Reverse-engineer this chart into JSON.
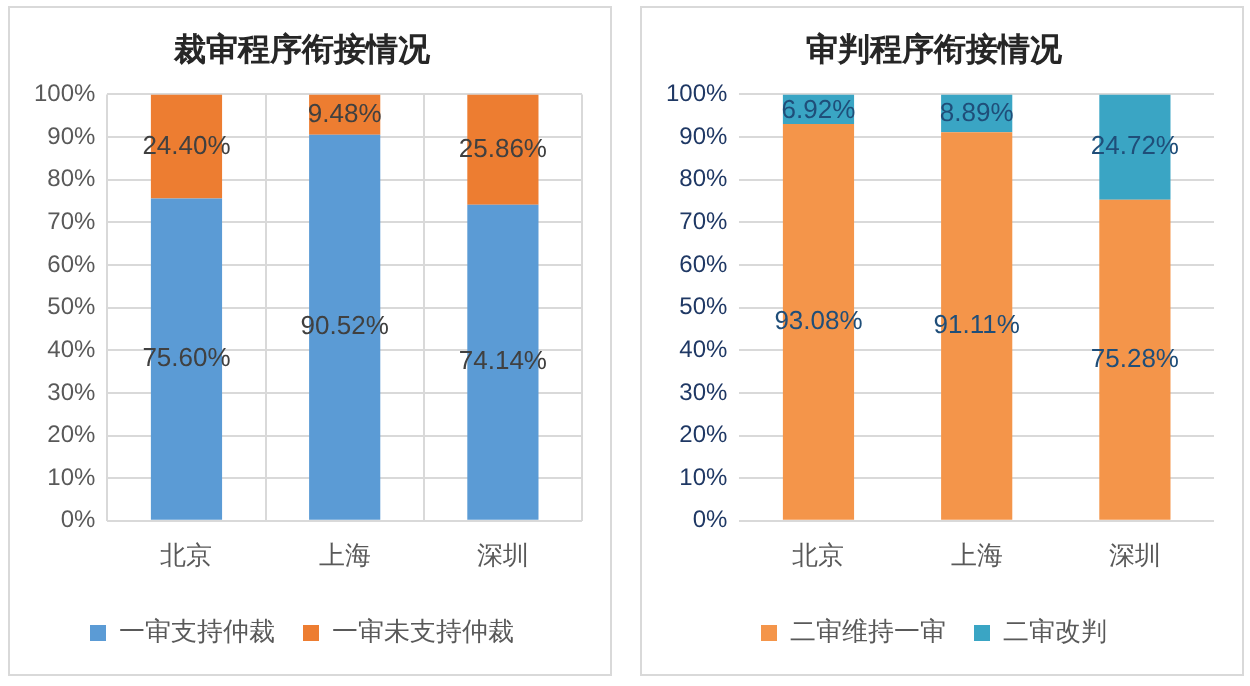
{
  "chart_data": [
    {
      "type": "bar",
      "title": "裁审程序衔接情况",
      "categories": [
        "北京",
        "上海",
        "深圳"
      ],
      "stacked": true,
      "ylim": [
        0,
        100
      ],
      "yticks": [
        {
          "value": 0,
          "label": "0%"
        },
        {
          "value": 10,
          "label": "10%"
        },
        {
          "value": 20,
          "label": "20%"
        },
        {
          "value": 30,
          "label": "30%"
        },
        {
          "value": 40,
          "label": "40%"
        },
        {
          "value": 50,
          "label": "50%"
        },
        {
          "value": 60,
          "label": "60%"
        },
        {
          "value": 70,
          "label": "70%"
        },
        {
          "value": 80,
          "label": "80%"
        },
        {
          "value": 90,
          "label": "90%"
        },
        {
          "value": 100,
          "label": "100%"
        }
      ],
      "series": [
        {
          "name": "一审支持仲裁",
          "color": "#5b9bd5",
          "values": [
            75.6,
            90.52,
            74.14
          ],
          "value_labels": [
            "75.60%",
            "90.52%",
            "74.14%"
          ]
        },
        {
          "name": "一审未支持仲裁",
          "color": "#ed7d31",
          "values": [
            24.4,
            9.48,
            25.86
          ],
          "value_labels": [
            "24.40%",
            "9.48%",
            "25.86%"
          ]
        }
      ],
      "grid": true,
      "legend": "bottom"
    },
    {
      "type": "bar",
      "title": "审判程序衔接情况",
      "categories": [
        "北京",
        "上海",
        "深圳"
      ],
      "stacked": true,
      "ylim": [
        0,
        100
      ],
      "yticks": [
        {
          "value": 0,
          "label": "0%"
        },
        {
          "value": 10,
          "label": "10%"
        },
        {
          "value": 20,
          "label": "20%"
        },
        {
          "value": 30,
          "label": "30%"
        },
        {
          "value": 40,
          "label": "40%"
        },
        {
          "value": 50,
          "label": "50%"
        },
        {
          "value": 60,
          "label": "60%"
        },
        {
          "value": 70,
          "label": "70%"
        },
        {
          "value": 80,
          "label": "80%"
        },
        {
          "value": 90,
          "label": "90%"
        },
        {
          "value": 100,
          "label": "100%"
        }
      ],
      "series": [
        {
          "name": "二审维持一审",
          "color": "#f4954a",
          "values": [
            93.08,
            91.11,
            75.28
          ],
          "value_labels": [
            "93.08%",
            "91.11%",
            "75.28%"
          ]
        },
        {
          "name": "二审改判",
          "color": "#3aa5c4",
          "values": [
            6.92,
            8.89,
            24.72
          ],
          "value_labels": [
            "6.92%",
            "8.89%",
            "24.72%"
          ]
        }
      ],
      "grid": "y",
      "legend": "bottom"
    }
  ]
}
